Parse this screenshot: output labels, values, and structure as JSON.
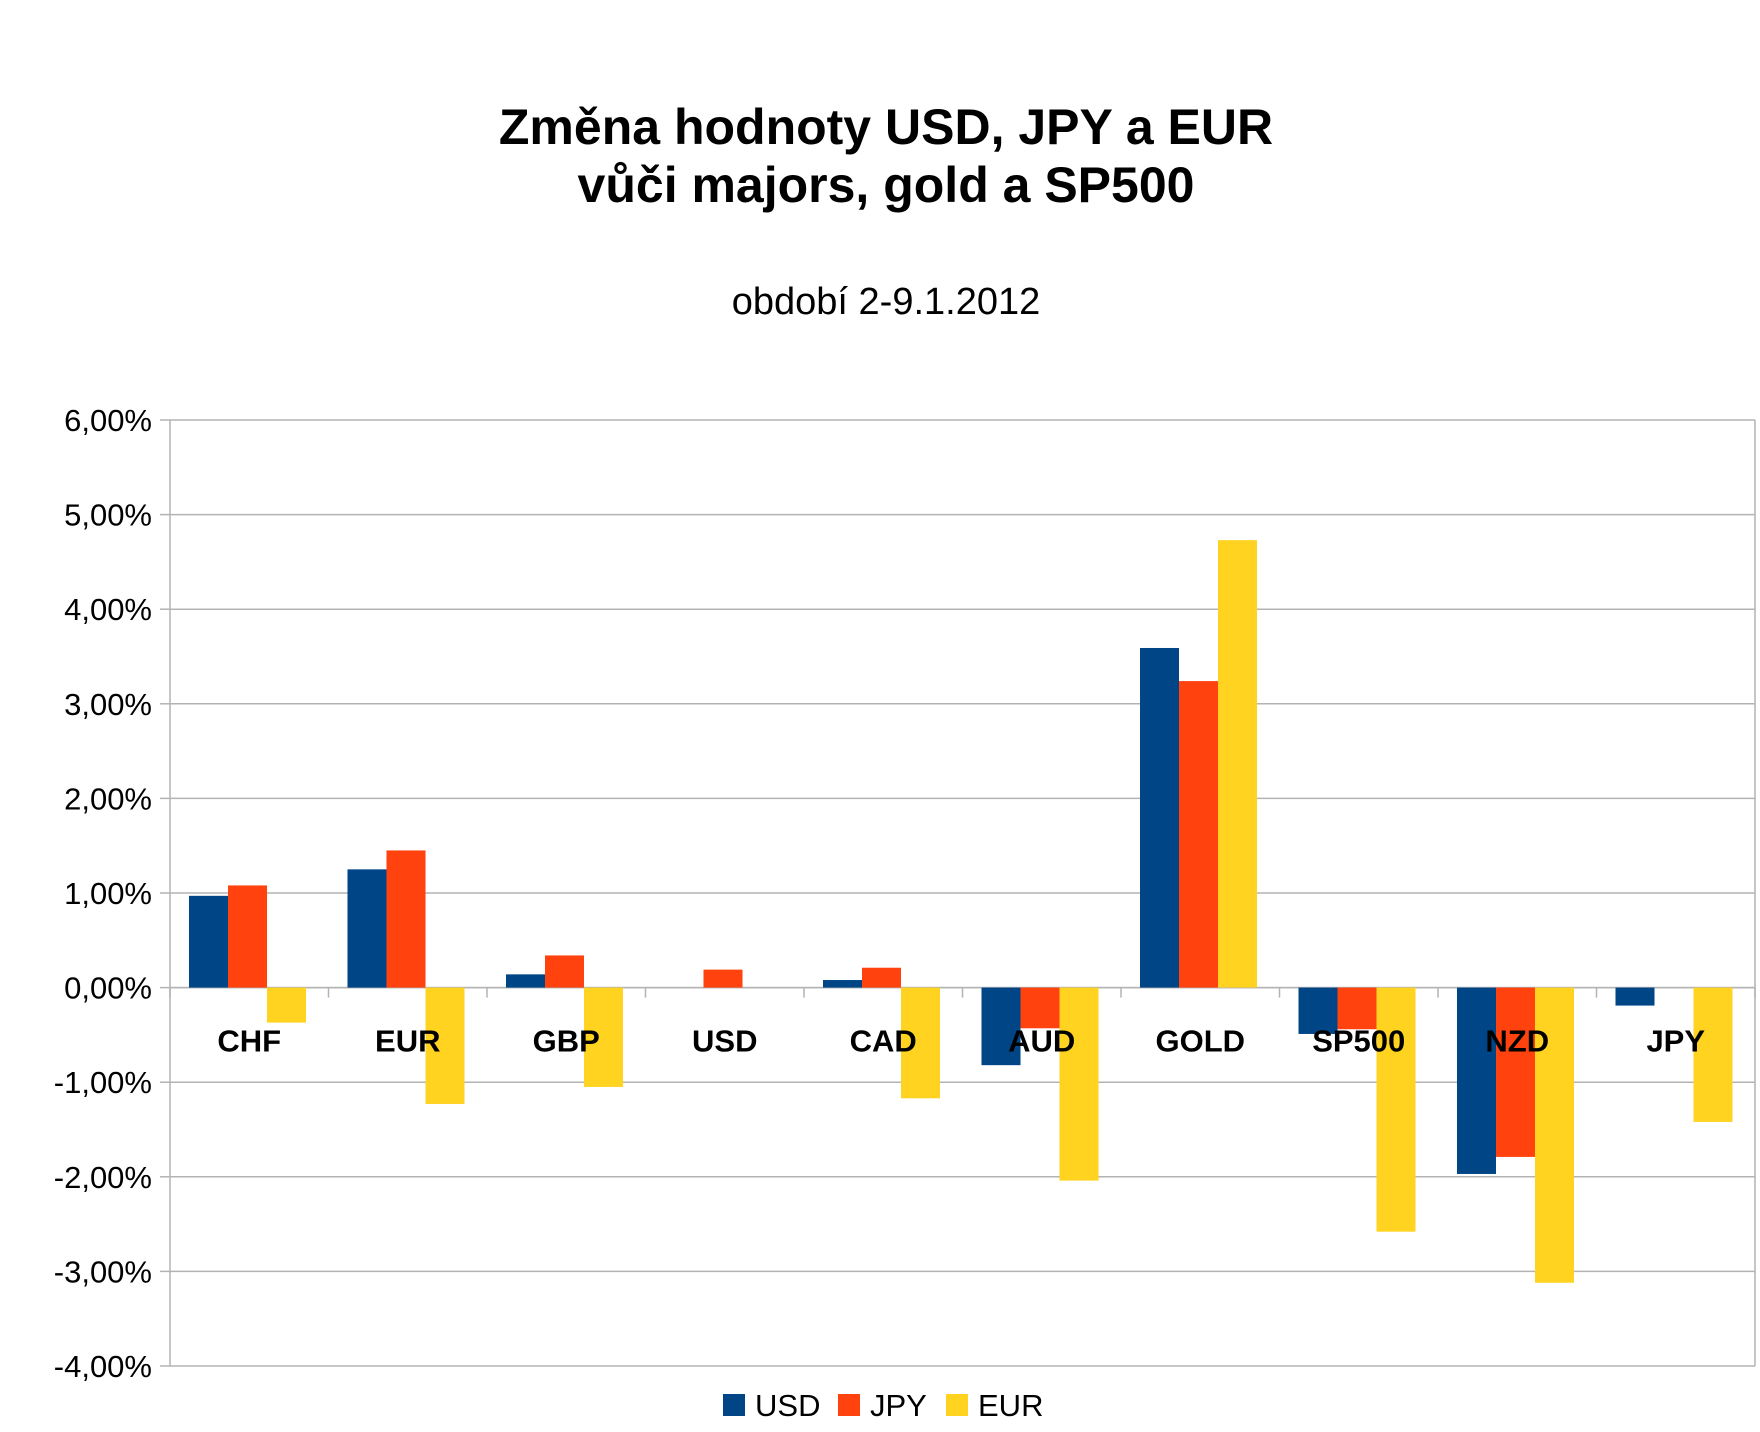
{
  "chart_data": {
    "type": "bar",
    "title_lines": [
      "Změna hodnoty USD, JPY a EUR",
      "vůči majors, gold a SP500"
    ],
    "subtitle": "období 2-9.1.2012",
    "categories": [
      "CHF",
      "EUR",
      "GBP",
      "USD",
      "CAD",
      "AUD",
      "GOLD",
      "SP500",
      "NZD",
      "JPY"
    ],
    "series": [
      {
        "name": "USD",
        "color": "#004586",
        "values": [
          0.97,
          1.25,
          0.14,
          0,
          0.08,
          -0.82,
          3.59,
          -0.49,
          -1.97,
          -0.19
        ]
      },
      {
        "name": "JPY",
        "color": "#ff420e",
        "values": [
          1.08,
          1.45,
          0.34,
          0.19,
          0.21,
          -0.43,
          3.24,
          -0.44,
          -1.79,
          0
        ]
      },
      {
        "name": "EUR",
        "color": "#ffd320",
        "values": [
          -0.37,
          -1.23,
          -1.05,
          0,
          -1.17,
          -2.04,
          4.73,
          -2.58,
          -3.12,
          -1.42
        ]
      }
    ],
    "ylim": [
      -4,
      6
    ],
    "yticks": [
      6,
      5,
      4,
      3,
      2,
      1,
      0,
      -1,
      -2,
      -3,
      -4
    ],
    "ytick_labels": [
      "6,00%",
      "5,00%",
      "4,00%",
      "3,00%",
      "2,00%",
      "1,00%",
      "0,00%",
      "-1,00%",
      "-2,00%",
      "-3,00%",
      "-4,00%"
    ],
    "grid": true,
    "legend_position": "bottom"
  }
}
